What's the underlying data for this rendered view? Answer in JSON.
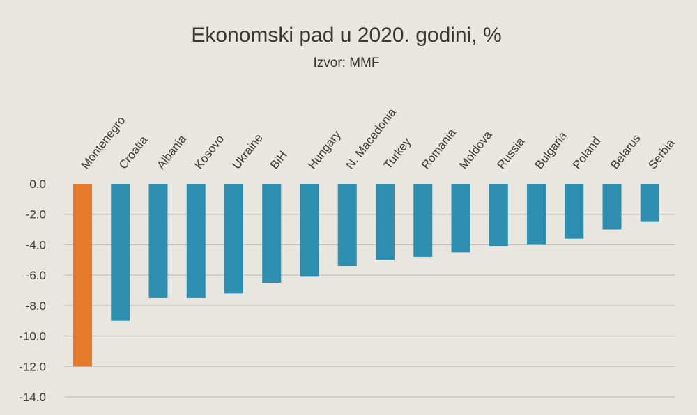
{
  "chart_data": {
    "type": "bar",
    "title": "Ekonomski pad u 2020. godini, %",
    "subtitle": "Izvor: MMF",
    "categories": [
      "Montenegro",
      "Croatia",
      "Albania",
      "Kosovo",
      "Ukraine",
      "BiH",
      "Hungary",
      "N. Macedonia",
      "Turkey",
      "Romania",
      "Moldova",
      "Russia",
      "Bulgaria",
      "Poland",
      "Belarus",
      "Serbia"
    ],
    "values": [
      -12.0,
      -9.0,
      -7.5,
      -7.5,
      -7.2,
      -6.5,
      -6.1,
      -5.4,
      -5.0,
      -4.8,
      -4.5,
      -4.1,
      -4.0,
      -3.6,
      -3.0,
      -2.5
    ],
    "ylim": [
      -14,
      0
    ],
    "yticks": [
      "0.0",
      "-2.0",
      "-4.0",
      "-6.0",
      "-8.0",
      "-10.0",
      "-12.0",
      "-14.0"
    ],
    "grid": true,
    "colors": {
      "highlight": "#e37b2b",
      "default": "#2e8eb0",
      "background": "#e9e5df"
    }
  }
}
